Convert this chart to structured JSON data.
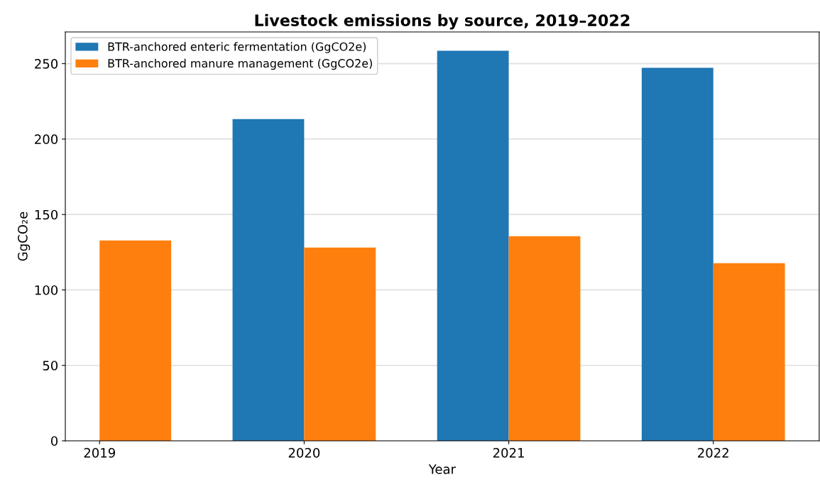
{
  "chart_data": {
    "type": "bar",
    "title": "Livestock emissions by source, 2019–2022",
    "xlabel": "Year",
    "ylabel": "GgCO₂e",
    "categories": [
      "2019",
      "2020",
      "2021",
      "2022"
    ],
    "series": [
      {
        "name": "BTR-anchored enteric fermentation (GgCO2e)",
        "color": "#1f77b4",
        "values": [
          null,
          213.3,
          258.5,
          247.2
        ]
      },
      {
        "name": "BTR-anchored manure management (GgCO2e)",
        "color": "#ff7f0e",
        "values": [
          132.8,
          128.1,
          135.6,
          117.7
        ]
      }
    ],
    "ylim": [
      0,
      271
    ],
    "yticks": [
      0,
      50,
      100,
      150,
      200,
      250
    ],
    "grid": "y",
    "legend": "top left"
  }
}
